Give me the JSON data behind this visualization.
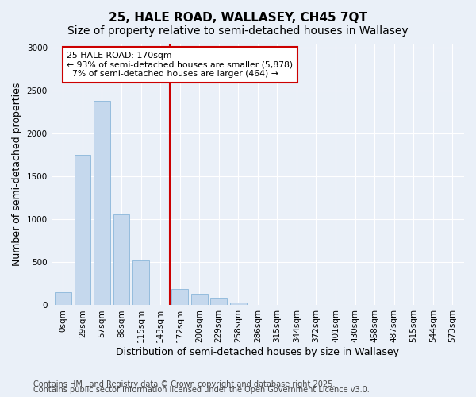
{
  "title": "25, HALE ROAD, WALLASEY, CH45 7QT",
  "subtitle": "Size of property relative to semi-detached houses in Wallasey",
  "xlabel": "Distribution of semi-detached houses by size in Wallasey",
  "ylabel": "Number of semi-detached properties",
  "bar_color": "#c5d8ed",
  "bar_edge_color": "#7aadd4",
  "vline_color": "#cc0000",
  "annotation_text": "25 HALE ROAD: 170sqm\n← 93% of semi-detached houses are smaller (5,878)\n  7% of semi-detached houses are larger (464) →",
  "annotation_box_color": "#ffffff",
  "annotation_box_edge": "#cc0000",
  "bin_labels": [
    "0sqm",
    "29sqm",
    "57sqm",
    "86sqm",
    "115sqm",
    "143sqm",
    "172sqm",
    "200sqm",
    "229sqm",
    "258sqm",
    "286sqm",
    "315sqm",
    "344sqm",
    "372sqm",
    "401sqm",
    "430sqm",
    "458sqm",
    "487sqm",
    "515sqm",
    "544sqm",
    "573sqm"
  ],
  "bar_heights": [
    150,
    1750,
    2380,
    1060,
    520,
    0,
    185,
    130,
    90,
    30,
    0,
    0,
    0,
    0,
    0,
    0,
    0,
    0,
    0,
    0,
    0
  ],
  "vline_bin_index": 6,
  "ylim": [
    0,
    3050
  ],
  "yticks": [
    0,
    500,
    1000,
    1500,
    2000,
    2500,
    3000
  ],
  "bg_color": "#eaf0f8",
  "plot_bg_color": "#eaf0f8",
  "footer_line1": "Contains HM Land Registry data © Crown copyright and database right 2025.",
  "footer_line2": "Contains public sector information licensed under the Open Government Licence v3.0.",
  "title_fontsize": 11,
  "subtitle_fontsize": 10,
  "axis_label_fontsize": 9,
  "tick_fontsize": 7.5,
  "footer_fontsize": 7
}
